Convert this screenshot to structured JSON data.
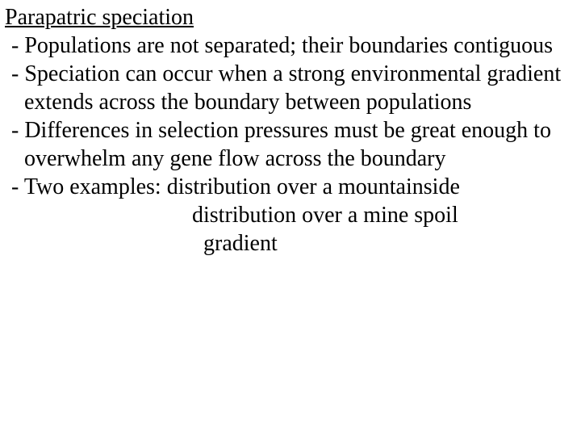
{
  "title": "Parapatric speciation",
  "bullets": {
    "b1": "- Populations are not separated; their boundaries contiguous",
    "b2": "- Speciation can occur when a strong environmental gradient extends across the boundary between populations",
    "b3": "- Differences in selection pressures must be great enough to overwhelm any gene flow across the boundary",
    "b4": "- Two examples: distribution over a mountainside",
    "b4_sub1": "distribution over a mine spoil",
    "b4_sub2": "gradient"
  },
  "style": {
    "font_family": "Times New Roman",
    "font_size_pt": 21,
    "text_color": "#000000",
    "background_color": "#ffffff",
    "title_underline": true
  }
}
